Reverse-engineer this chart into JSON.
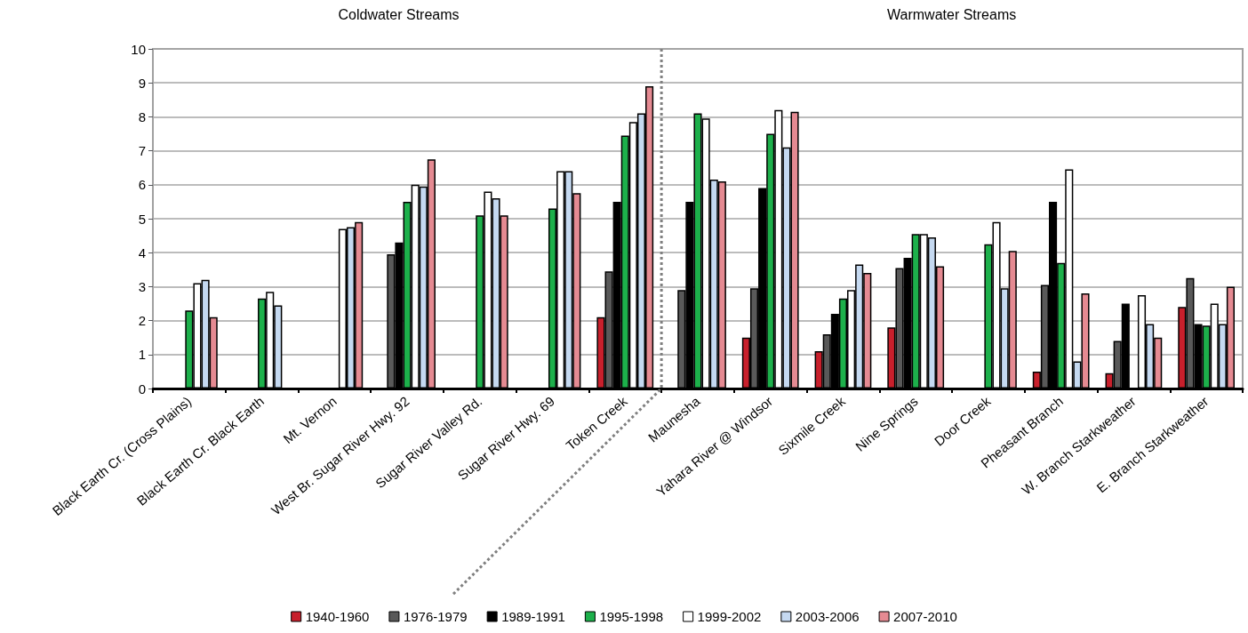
{
  "chart_data": {
    "type": "bar",
    "categories": [
      "Black Earth Cr. (Cross Plains)",
      "Black Earth Cr. Black Earth",
      "Mt. Vernon",
      "West Br. Sugar River Hwy. 92",
      "Sugar River Valley Rd.",
      "Sugar River Hwy. 69",
      "Token Creek",
      "Maunesha",
      "Yahara River @ Windsor",
      "Sixmile Creek",
      "Nine Springs",
      "Door Creek",
      "Pheasant Branch",
      "W. Branch Starkweather",
      "E. Branch Starkweather"
    ],
    "series": [
      {
        "name": "1940-1960",
        "color": "#c8202c",
        "values": [
          null,
          null,
          null,
          null,
          null,
          null,
          2.1,
          null,
          1.5,
          1.1,
          1.8,
          null,
          0.5,
          0.45,
          2.4
        ]
      },
      {
        "name": "1976-1979",
        "color": "#595959",
        "values": [
          null,
          null,
          null,
          3.95,
          null,
          null,
          3.45,
          2.9,
          2.95,
          1.6,
          3.55,
          null,
          3.05,
          1.4,
          3.25
        ]
      },
      {
        "name": "1989-1991",
        "color": "#000000",
        "values": [
          null,
          null,
          null,
          4.3,
          null,
          null,
          5.5,
          5.5,
          5.9,
          2.2,
          3.85,
          null,
          5.5,
          2.5,
          1.9
        ]
      },
      {
        "name": "1995-1998",
        "color": "#1db04b",
        "values": [
          2.3,
          2.65,
          null,
          5.5,
          5.1,
          5.3,
          7.45,
          8.1,
          7.5,
          2.65,
          4.55,
          4.25,
          3.7,
          null,
          1.85
        ]
      },
      {
        "name": "1999-2002",
        "color": "#ffffff",
        "values": [
          3.1,
          2.85,
          4.7,
          6.0,
          5.8,
          6.4,
          7.85,
          7.95,
          8.2,
          2.9,
          4.55,
          4.9,
          6.45,
          2.75,
          2.5
        ]
      },
      {
        "name": "2003-2006",
        "color": "#c5d9f1",
        "values": [
          3.2,
          2.45,
          4.75,
          5.95,
          5.6,
          6.4,
          8.1,
          6.15,
          7.1,
          3.65,
          4.45,
          2.95,
          0.8,
          1.9,
          1.9
        ]
      },
      {
        "name": "2007-2010",
        "color": "#e58a92",
        "values": [
          2.1,
          null,
          4.9,
          6.75,
          5.1,
          5.75,
          8.9,
          6.1,
          8.15,
          3.4,
          3.6,
          4.05,
          2.8,
          1.5,
          3.0
        ]
      }
    ],
    "ylim": [
      0,
      10
    ],
    "yticks": [
      0,
      1,
      2,
      3,
      4,
      5,
      6,
      7,
      8,
      9,
      10
    ],
    "grid": "y",
    "legend": "bottom",
    "annotations": [
      "Coldwater Streams",
      "Warmwater Streams"
    ]
  }
}
